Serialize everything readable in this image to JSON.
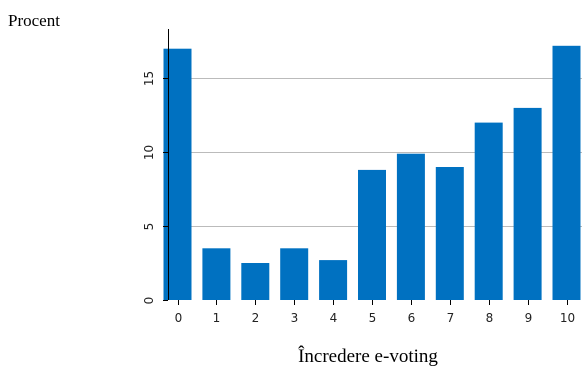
{
  "chart_data": {
    "type": "bar",
    "ylabel": "Procent",
    "xlabel": "Încredere e-voting",
    "categories": [
      "0",
      "1",
      "2",
      "3",
      "4",
      "5",
      "6",
      "7",
      "8",
      "9",
      "10"
    ],
    "values": [
      17.0,
      3.5,
      2.5,
      3.5,
      2.7,
      8.8,
      9.9,
      9.0,
      12.0,
      13.0,
      17.2
    ],
    "ylim": [
      0,
      18.2
    ],
    "yticks": [
      0,
      5,
      10,
      15
    ],
    "grid": true,
    "bar_color": "#0071c1",
    "grid_color": "#bbbbbb"
  }
}
